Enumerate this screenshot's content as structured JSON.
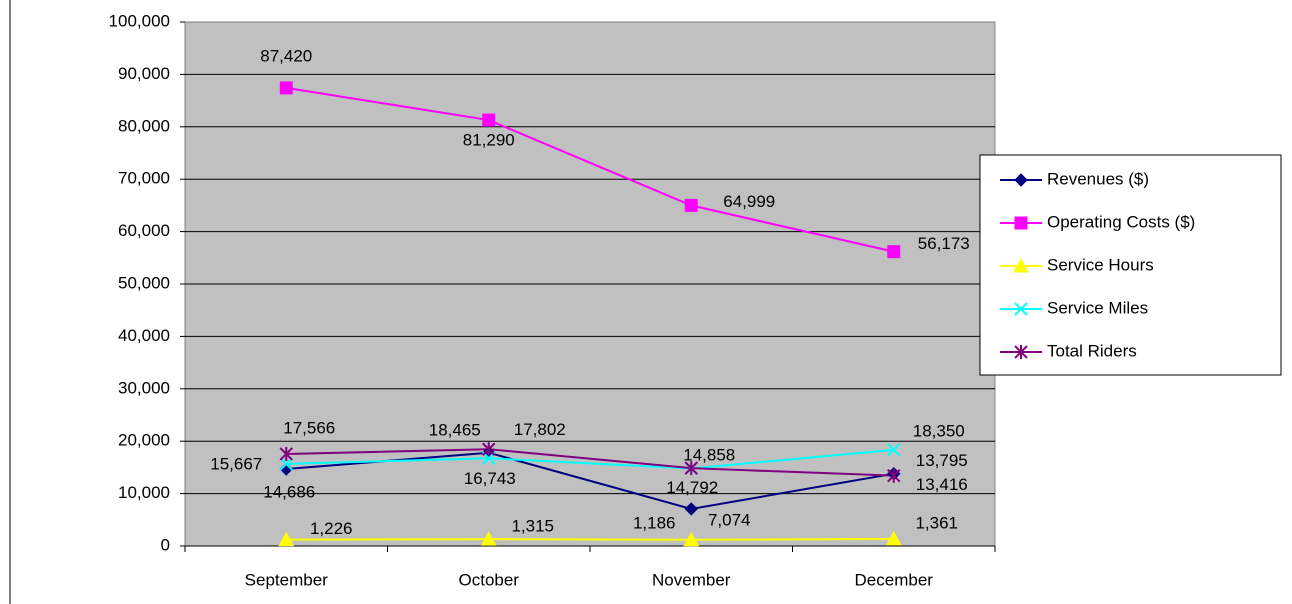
{
  "chart_data": {
    "type": "line",
    "categories": [
      "September",
      "October",
      "November",
      "December"
    ],
    "ylim": [
      0,
      100000
    ],
    "yticks": [
      0,
      {
        "value": 10000,
        "label": "10,000"
      },
      {
        "value": 20000,
        "label": "20,000"
      },
      {
        "value": 30000,
        "label": "30,000"
      },
      {
        "value": 40000,
        "label": "40,000"
      },
      {
        "value": 50000,
        "label": "50,000"
      },
      {
        "value": 60000,
        "label": "60,000"
      },
      {
        "value": 70000,
        "label": "70,000"
      },
      {
        "value": 80000,
        "label": "80,000"
      },
      {
        "value": 90000,
        "label": "90,000"
      },
      {
        "value": 100000,
        "label": "100,000"
      }
    ],
    "grid": true,
    "legend": "right",
    "series": [
      {
        "name": "Revenues ($)",
        "color": "#000080",
        "marker": "diamond",
        "values": [
          14686,
          17802,
          7074,
          13795
        ],
        "value_labels": [
          "14,686",
          "17,802",
          "7,074",
          "13,795"
        ]
      },
      {
        "name": "Operating Costs ($)",
        "color": "#ff00ff",
        "marker": "square",
        "values": [
          87420,
          81290,
          64999,
          56173
        ],
        "value_labels": [
          "87,420",
          "81,290",
          "64,999",
          "56,173"
        ]
      },
      {
        "name": "Service Hours",
        "color": "#ffff00",
        "marker": "triangle",
        "values": [
          1226,
          1315,
          1186,
          1361
        ],
        "value_labels": [
          "1,226",
          "1,315",
          "1,186",
          "1,361"
        ]
      },
      {
        "name": "Service Miles",
        "color": "#00ffff",
        "marker": "x",
        "values": [
          15667,
          16743,
          14792,
          18350
        ],
        "value_labels": [
          "15,667",
          "16,743",
          "14,792",
          "18,350"
        ]
      },
      {
        "name": "Total Riders",
        "color": "#800080",
        "marker": "star",
        "values": [
          17566,
          18465,
          14858,
          13416
        ],
        "value_labels": [
          "17,566",
          "18,465",
          "14,858",
          "13,416"
        ]
      }
    ]
  }
}
